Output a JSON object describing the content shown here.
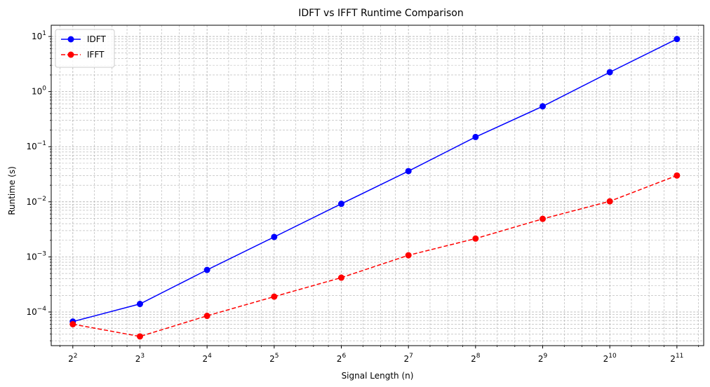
{
  "chart_data": {
    "type": "line",
    "title": "IDFT vs IFFT Runtime Comparison",
    "xlabel": "Signal Length (n)",
    "ylabel": "Runtime (s)",
    "xscale": "log2",
    "yscale": "log10",
    "x": [
      4,
      8,
      16,
      32,
      64,
      128,
      256,
      512,
      1024,
      2048
    ],
    "x_tick_labels": [
      {
        "base": "2",
        "exp": "2"
      },
      {
        "base": "2",
        "exp": "3"
      },
      {
        "base": "2",
        "exp": "4"
      },
      {
        "base": "2",
        "exp": "5"
      },
      {
        "base": "2",
        "exp": "6"
      },
      {
        "base": "2",
        "exp": "7"
      },
      {
        "base": "2",
        "exp": "8"
      },
      {
        "base": "2",
        "exp": "9"
      },
      {
        "base": "2",
        "exp": "10"
      },
      {
        "base": "2",
        "exp": "11"
      }
    ],
    "y_tick_labels": [
      {
        "base": "10",
        "exp": "−4"
      },
      {
        "base": "10",
        "exp": "−3"
      },
      {
        "base": "10",
        "exp": "−2"
      },
      {
        "base": "10",
        "exp": "−1"
      },
      {
        "base": "10",
        "exp": "0"
      },
      {
        "base": "10",
        "exp": "1"
      }
    ],
    "y_ticks": [
      0.0001,
      0.001,
      0.01,
      0.1,
      1,
      10
    ],
    "xlim": [
      3.2,
      2700
    ],
    "ylim": [
      2.45e-05,
      16
    ],
    "grid": true,
    "legend_position": "top-left",
    "series": [
      {
        "name": "IDFT",
        "color": "#0000ff",
        "linestyle": "solid",
        "marker": "circle",
        "values": [
          6.7e-05,
          0.00014,
          0.00058,
          0.0023,
          0.0092,
          0.036,
          0.15,
          0.54,
          2.25,
          9.0
        ]
      },
      {
        "name": "IFFT",
        "color": "#ff0000",
        "linestyle": "dashed",
        "marker": "circle",
        "values": [
          6e-05,
          3.6e-05,
          8.5e-05,
          0.00019,
          0.00042,
          0.00107,
          0.00215,
          0.0049,
          0.0102,
          0.03
        ]
      }
    ]
  }
}
